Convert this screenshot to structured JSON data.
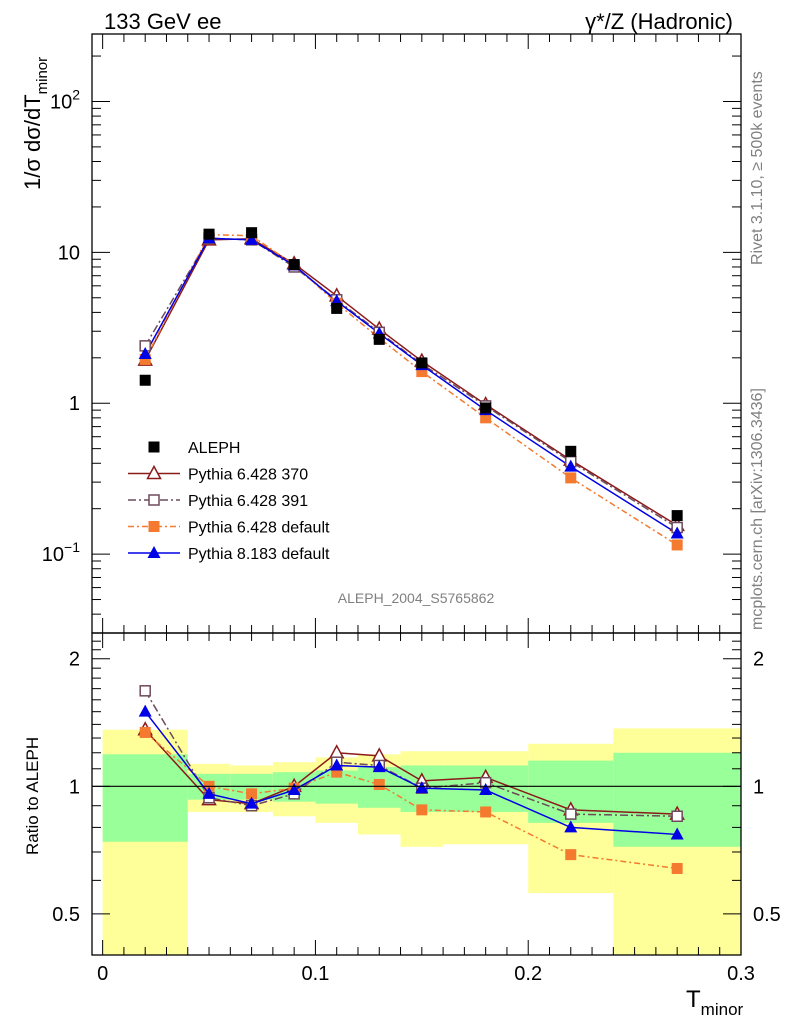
{
  "header": {
    "left": "133 GeV ee",
    "right": "γ*/Z (Hadronic)"
  },
  "side_labels": {
    "rivet": "Rivet 3.1.10, ≥ 500k events",
    "mcplots": "mcplots.cern.ch [arXiv:1306.3436]"
  },
  "analysis_label": "ALEPH_2004_S5765862",
  "chart_data": [
    {
      "type": "scatter",
      "ylabel_prefix": "1/σ  dσ/dT",
      "ylabel_sub": "minor",
      "yscale": "log",
      "ylim": [
        0.03,
        280
      ],
      "xlim": [
        -0.005,
        0.3
      ],
      "yticks": [
        {
          "v": 0.1,
          "base": "10",
          "exp": "−1"
        },
        {
          "v": 1,
          "base": "1",
          "exp": ""
        },
        {
          "v": 10,
          "base": "10",
          "exp": ""
        },
        {
          "v": 100,
          "base": "10",
          "exp": "2"
        }
      ],
      "data": {
        "name": "ALEPH",
        "x": [
          0.02,
          0.05,
          0.07,
          0.09,
          0.11,
          0.13,
          0.15,
          0.18,
          0.22,
          0.27
        ],
        "y": [
          1.42,
          13.2,
          13.5,
          8.3,
          4.25,
          2.65,
          1.85,
          0.93,
          0.48,
          0.18
        ]
      },
      "series": [
        {
          "name": "Pythia 6.428 370",
          "color": "#8b1a1a",
          "dash": "",
          "marker": "triangle-open",
          "y": [
            1.93,
            12.1,
            12.3,
            8.4,
            5.15,
            3.1,
            1.9,
            0.98,
            0.42,
            0.155
          ]
        },
        {
          "name": "Pythia 6.428 391",
          "color": "#6e4a5c",
          "dash": "8,3,2,3",
          "marker": "square-open",
          "y": [
            2.4,
            12.4,
            12.1,
            8.0,
            4.85,
            2.95,
            1.82,
            0.96,
            0.41,
            0.15
          ]
        },
        {
          "name": "Pythia 6.428 default",
          "color": "#f47a30",
          "dash": "6,3,2,3",
          "marker": "square",
          "y": [
            1.95,
            13.1,
            12.9,
            8.25,
            4.6,
            2.7,
            1.62,
            0.8,
            0.32,
            0.115
          ]
        },
        {
          "name": "Pythia 8.183 default",
          "color": "#0000e6",
          "dash": "",
          "marker": "triangle",
          "y": [
            2.12,
            12.4,
            12.1,
            8.2,
            4.75,
            2.9,
            1.79,
            0.9,
            0.38,
            0.137
          ]
        }
      ],
      "legend": [
        {
          "label": "ALEPH"
        },
        {
          "label": "Pythia 6.428 370"
        },
        {
          "label": "Pythia 6.428 391"
        },
        {
          "label": "Pythia 6.428 default"
        },
        {
          "label": "Pythia 8.183 default"
        }
      ]
    },
    {
      "type": "line",
      "ylabel": "Ratio to ALEPH",
      "xlabel": "T",
      "xlabel_sub": "minor",
      "yscale": "log",
      "ylim": [
        0.4,
        2.3
      ],
      "xticks": [
        {
          "v": 0,
          "label": "0"
        },
        {
          "v": 0.1,
          "label": "0.1"
        },
        {
          "v": 0.2,
          "label": "0.2"
        },
        {
          "v": 0.3,
          "label": "0.3"
        }
      ],
      "yticks": [
        {
          "v": 0.5,
          "label": "0.5"
        },
        {
          "v": 1,
          "label": "1"
        },
        {
          "v": 2,
          "label": "2"
        }
      ],
      "bands": [
        {
          "x0": 0.0,
          "x1": 0.04,
          "y1lo": 0.74,
          "y1hi": 1.19,
          "y2lo": 0.35,
          "y2hi": 1.36
        },
        {
          "x0": 0.04,
          "x1": 0.06,
          "y1lo": 0.93,
          "y1hi": 1.07,
          "y2lo": 0.87,
          "y2hi": 1.13
        },
        {
          "x0": 0.06,
          "x1": 0.08,
          "y1lo": 0.93,
          "y1hi": 1.07,
          "y2lo": 0.87,
          "y2hi": 1.12
        },
        {
          "x0": 0.08,
          "x1": 0.1,
          "y1lo": 0.92,
          "y1hi": 1.08,
          "y2lo": 0.85,
          "y2hi": 1.14
        },
        {
          "x0": 0.1,
          "x1": 0.12,
          "y1lo": 0.91,
          "y1hi": 1.09,
          "y2lo": 0.82,
          "y2hi": 1.17
        },
        {
          "x0": 0.12,
          "x1": 0.14,
          "y1lo": 0.89,
          "y1hi": 1.11,
          "y2lo": 0.77,
          "y2hi": 1.19
        },
        {
          "x0": 0.14,
          "x1": 0.16,
          "y1lo": 0.87,
          "y1hi": 1.12,
          "y2lo": 0.72,
          "y2hi": 1.21
        },
        {
          "x0": 0.16,
          "x1": 0.2,
          "y1lo": 0.87,
          "y1hi": 1.12,
          "y2lo": 0.73,
          "y2hi": 1.21
        },
        {
          "x0": 0.2,
          "x1": 0.24,
          "y1lo": 0.82,
          "y1hi": 1.15,
          "y2lo": 0.56,
          "y2hi": 1.26
        },
        {
          "x0": 0.24,
          "x1": 0.3,
          "y1lo": 0.72,
          "y1hi": 1.2,
          "y2lo": 0.35,
          "y2hi": 1.37
        }
      ],
      "series": [
        {
          "name": "Pythia 6.428 370",
          "y": [
            1.36,
            0.93,
            0.91,
            1.0,
            1.2,
            1.18,
            1.03,
            1.05,
            0.88,
            0.86
          ]
        },
        {
          "name": "Pythia 6.428 391",
          "y": [
            1.68,
            0.94,
            0.9,
            0.96,
            1.14,
            1.12,
            0.99,
            1.02,
            0.86,
            0.85
          ]
        },
        {
          "name": "Pythia 6.428 default",
          "y": [
            1.34,
            1.0,
            0.96,
            0.99,
            1.08,
            1.01,
            0.88,
            0.87,
            0.69,
            0.64
          ]
        },
        {
          "name": "Pythia 8.183 default",
          "y": [
            1.5,
            0.96,
            0.91,
            0.98,
            1.12,
            1.11,
            0.99,
            0.98,
            0.8,
            0.77
          ]
        }
      ]
    }
  ]
}
